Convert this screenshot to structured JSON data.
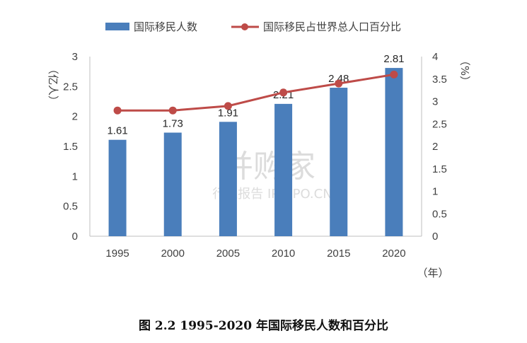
{
  "caption": "图 2.2    1995-2020 年国际移民人数和百分比",
  "units": {
    "left": "（亿人）",
    "right": "（%）",
    "bottom": "（年）"
  },
  "watermark": {
    "brand": "并购家",
    "sub": "行业报告 IPOIPO.CN"
  },
  "colors": {
    "bar": "#4a7ebb",
    "line": "#be4b48",
    "axis": "#bfbfbf"
  },
  "chart_data": {
    "type": "bar",
    "categories": [
      "1995",
      "2000",
      "2005",
      "2010",
      "2015",
      "2020"
    ],
    "series": [
      {
        "name": "国际移民人数",
        "type": "bar",
        "axis": "left",
        "values": [
          1.61,
          1.73,
          1.91,
          2.21,
          2.48,
          2.81
        ],
        "labels": [
          "1.61",
          "1.73",
          "1.91",
          "2.21",
          "2.48",
          "2.81"
        ]
      },
      {
        "name": "国际移民占世界总人口百分比",
        "type": "line",
        "axis": "right",
        "values": [
          2.8,
          2.8,
          2.9,
          3.2,
          3.4,
          3.6
        ]
      }
    ],
    "y_left": {
      "min": 0,
      "max": 3,
      "ticks": [
        "0",
        "0.5",
        "1",
        "1.5",
        "2",
        "2.5",
        "3"
      ]
    },
    "y_right": {
      "min": 0,
      "max": 4,
      "ticks": [
        "0",
        "0.5",
        "1",
        "1.5",
        "2",
        "2.5",
        "3",
        "3.5",
        "4"
      ]
    },
    "grid": false,
    "legend": "top"
  }
}
